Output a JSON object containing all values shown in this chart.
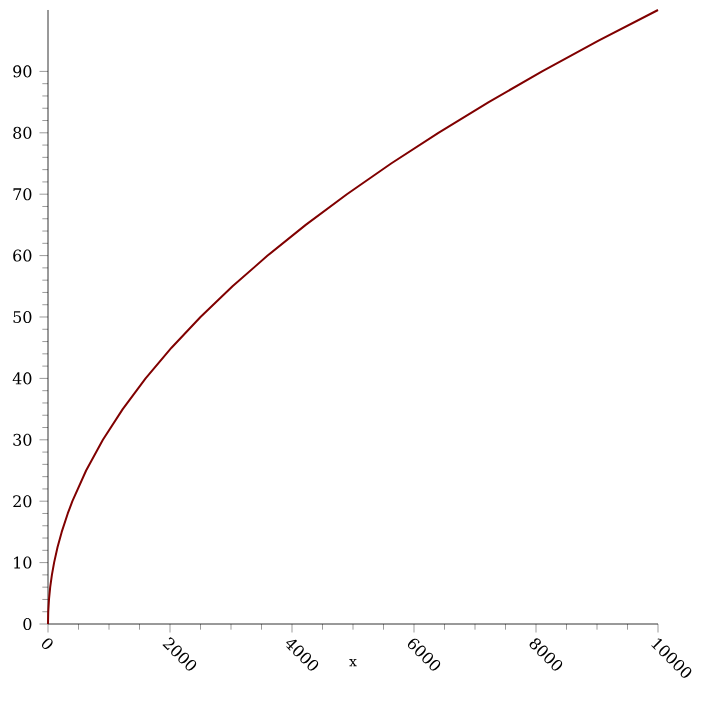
{
  "chart_data": {
    "type": "line",
    "xlabel": "x",
    "x": [
      0,
      4,
      16,
      36,
      64,
      100,
      156,
      225,
      324,
      400,
      625,
      900,
      1225,
      1600,
      2025,
      2500,
      3025,
      3600,
      4225,
      4900,
      5625,
      6400,
      7225,
      8100,
      9025,
      10000
    ],
    "series": [
      {
        "color": "#800000",
        "values": [
          0,
          2,
          4,
          6,
          8,
          10,
          12.5,
          15,
          18,
          20,
          25,
          30,
          35,
          40,
          45,
          50,
          55,
          60,
          65,
          70,
          75,
          80,
          85,
          90,
          95,
          100
        ]
      }
    ],
    "xlim": [
      0,
      10000
    ],
    "ylim": [
      0,
      100
    ],
    "xticks": [
      0,
      2000,
      4000,
      6000,
      8000,
      10000
    ],
    "yticks": [
      0,
      10,
      20,
      30,
      40,
      50,
      60,
      70,
      80,
      90
    ]
  }
}
